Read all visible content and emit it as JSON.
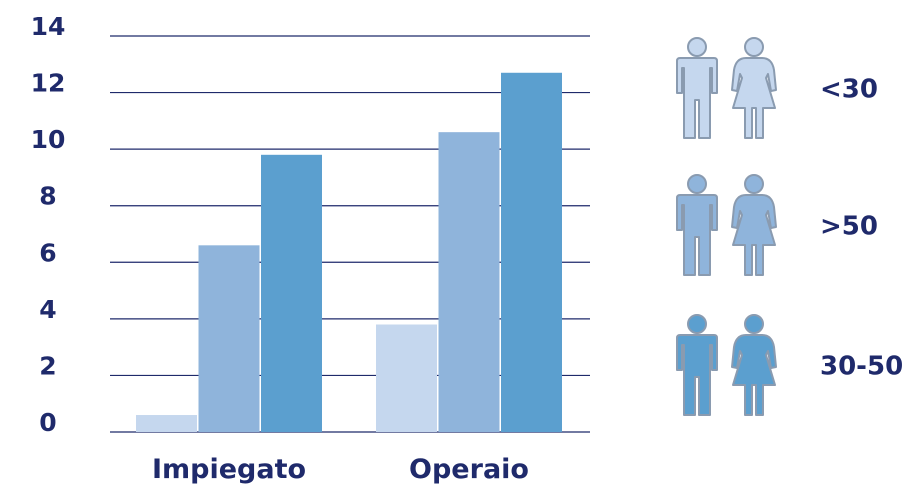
{
  "chart_data": {
    "type": "bar",
    "categories": [
      "Impiegato",
      "Operaio"
    ],
    "series": [
      {
        "name": "<30",
        "values": [
          0.6,
          3.8
        ],
        "color": "#c5d7ee"
      },
      {
        "name": ">50",
        "values": [
          6.6,
          10.6
        ],
        "color": "#8fb4db"
      },
      {
        "name": "30-50",
        "values": [
          9.8,
          12.7
        ],
        "color": "#5b9fcf"
      }
    ],
    "y_ticks": [
      "0",
      "2",
      "4",
      "6",
      "8",
      "10",
      "12",
      "14"
    ],
    "ylim": [
      0,
      14
    ],
    "grid": true,
    "legend_position": "right",
    "legend_icons": [
      "man-icon",
      "woman-icon"
    ],
    "axis_color": "#1f2a6b",
    "outline_color": "#8a9bb0"
  }
}
